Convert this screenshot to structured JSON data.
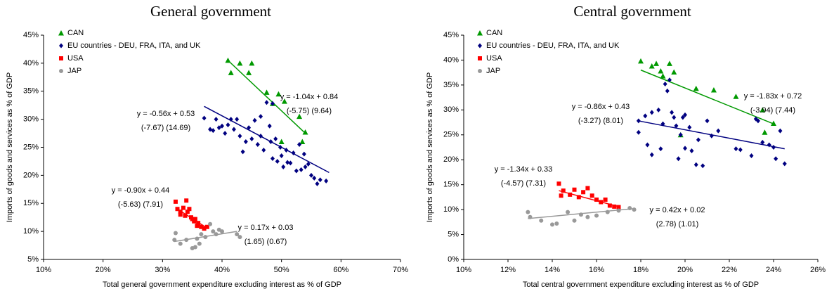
{
  "chart_data": [
    {
      "type": "scatter",
      "title": "General government",
      "x_label": "Total general government expenditure excluding interest as % of GDP",
      "y_label": "Imports of goods and services as % of GDP",
      "xlim": [
        10,
        70
      ],
      "ylim": [
        5,
        45
      ],
      "xticks": [
        {
          "value": 10,
          "label": "10%"
        },
        {
          "value": 20,
          "label": "20%"
        },
        {
          "value": 30,
          "label": "30%"
        },
        {
          "value": 40,
          "label": "40%"
        },
        {
          "value": 50,
          "label": "50%"
        },
        {
          "value": 60,
          "label": "60%"
        },
        {
          "value": 70,
          "label": "70%"
        }
      ],
      "yticks": [
        {
          "value": 5,
          "label": "5%"
        },
        {
          "value": 10,
          "label": "10%"
        },
        {
          "value": 15,
          "label": "15%"
        },
        {
          "value": 20,
          "label": "20%"
        },
        {
          "value": 25,
          "label": "25%"
        },
        {
          "value": 30,
          "label": "30%"
        },
        {
          "value": 35,
          "label": "35%"
        },
        {
          "value": 40,
          "label": "40%"
        },
        {
          "value": 45,
          "label": "45%"
        }
      ],
      "legend": "upper left",
      "series": [
        {
          "name": "CAN",
          "color": "#009900",
          "marker": "triangle",
          "x": [
            41,
            41.5,
            43,
            44.5,
            45,
            47.5,
            48.5,
            49.5,
            50,
            50.5,
            53,
            53.5,
            54
          ],
          "y": [
            40.5,
            38.3,
            40,
            38.3,
            40,
            34.8,
            32.8,
            34.5,
            26,
            33.2,
            30.5,
            26,
            27.7
          ],
          "trend": {
            "x": [
              41,
              54
            ],
            "y": [
              40.5,
              27.5
            ]
          },
          "equation": [
            "y = -1.04x + 0.84",
            "(-5.75)  (9.64)"
          ]
        },
        {
          "name": "EU countries - DEU, FRA, ITA, and UK",
          "color": "#000080",
          "marker": "diamond",
          "x": [
            37,
            38,
            38.5,
            39,
            39.5,
            40,
            40.5,
            41,
            41.5,
            42,
            42.5,
            43,
            43.5,
            44,
            44.5,
            45,
            45.5,
            46,
            46.5,
            47,
            47.5,
            48,
            48.2,
            48.5,
            49,
            49.3,
            49.8,
            50,
            50.3,
            50.8,
            51,
            51.5,
            52,
            52.5,
            53,
            53.3,
            53.8,
            54,
            54.5,
            55,
            55.5,
            56,
            56.5,
            57.5,
            48.5,
            46.5
          ],
          "y": [
            30.2,
            28.2,
            28,
            30,
            28.5,
            28.8,
            27.5,
            29,
            30,
            28.2,
            30,
            27,
            24.2,
            26,
            28.5,
            26.5,
            29.8,
            25.5,
            27,
            24.5,
            33,
            28.8,
            26,
            23,
            26.5,
            22.5,
            25,
            23.5,
            21.5,
            24.5,
            22.3,
            22.2,
            24,
            20.8,
            25.5,
            21,
            23.8,
            21.5,
            22,
            20,
            19.5,
            18.5,
            19.2,
            19,
            32.8,
            30.5
          ],
          "trend": {
            "x": [
              37,
              58
            ],
            "y": [
              32.3,
              20.5
            ]
          },
          "equation": [
            "y = -0.56x + 0.53",
            "(-7.67)  (14.69)"
          ]
        },
        {
          "name": "USA",
          "color": "#ff0000",
          "marker": "square",
          "x": [
            32.2,
            32.5,
            33,
            33,
            33.5,
            33.8,
            34,
            34.2,
            34.5,
            34.8,
            35,
            35.3,
            35.5,
            35.8,
            36,
            36.5,
            37,
            37.5
          ],
          "y": [
            15.3,
            14,
            13.5,
            13,
            14.2,
            12.8,
            15.5,
            13.5,
            14,
            12.5,
            12.2,
            11.8,
            12.2,
            11,
            11.5,
            10.8,
            10.5,
            10.8
          ],
          "trend": {
            "x": [
              32.2,
              37.5
            ],
            "y": [
              14.2,
              10.6
            ]
          },
          "equation": [
            "y = -0.90x + 0.44",
            "(-5.63)  (7.91)"
          ]
        },
        {
          "name": "JAP",
          "color": "#999999",
          "marker": "circle",
          "x": [
            32,
            32.2,
            33,
            34,
            35,
            35.5,
            35.8,
            36.2,
            36.5,
            37.2,
            38,
            38.5,
            39,
            39.5,
            40,
            42.5,
            43
          ],
          "y": [
            8.5,
            9.7,
            7.8,
            8.5,
            7,
            7.2,
            8.7,
            7.8,
            9.5,
            9,
            11.3,
            10,
            9.5,
            10.3,
            10,
            9.5,
            9
          ],
          "trend": {
            "x": [
              32,
              42.5
            ],
            "y": [
              8.2,
              10
            ]
          },
          "equation": [
            "y = 0.17x + 0.03",
            "(1.65)  (0.67)"
          ]
        }
      ]
    },
    {
      "type": "scatter",
      "title": "Central government",
      "x_label": "Total central government expenditure excluding interest as % of GDP",
      "y_label": "Imports of goods and services as % of GDP",
      "xlim": [
        10,
        26
      ],
      "ylim": [
        0,
        45
      ],
      "xticks": [
        {
          "value": 10,
          "label": "10%"
        },
        {
          "value": 12,
          "label": "12%"
        },
        {
          "value": 14,
          "label": "14%"
        },
        {
          "value": 16,
          "label": "16%"
        },
        {
          "value": 18,
          "label": "18%"
        },
        {
          "value": 20,
          "label": "20%"
        },
        {
          "value": 22,
          "label": "22%"
        },
        {
          "value": 24,
          "label": "24%"
        },
        {
          "value": 26,
          "label": "26%"
        }
      ],
      "yticks": [
        {
          "value": 0,
          "label": "0%"
        },
        {
          "value": 5,
          "label": "5%"
        },
        {
          "value": 10,
          "label": "10%"
        },
        {
          "value": 15,
          "label": "15%"
        },
        {
          "value": 20,
          "label": "20%"
        },
        {
          "value": 25,
          "label": "25%"
        },
        {
          "value": 30,
          "label": "30%"
        },
        {
          "value": 35,
          "label": "35%"
        },
        {
          "value": 40,
          "label": "40%"
        },
        {
          "value": 45,
          "label": "45%"
        }
      ],
      "legend": "upper left",
      "series": [
        {
          "name": "CAN",
          "color": "#009900",
          "marker": "triangle",
          "x": [
            18,
            18.5,
            18.7,
            18.9,
            19,
            19.3,
            19.5,
            19.8,
            20.5,
            21.3,
            22.3,
            23.5,
            23.6,
            24
          ],
          "y": [
            39.8,
            38.8,
            39.3,
            37.8,
            36.8,
            39.3,
            37.6,
            25,
            34.3,
            34,
            32.7,
            30,
            25.5,
            27.3
          ],
          "trend": {
            "x": [
              18,
              24
            ],
            "y": [
              38,
              27.2
            ]
          },
          "equation": [
            "y = -1.83x + 0.72",
            "(-3.94)  (7.44)"
          ]
        },
        {
          "name": "EU countries - DEU, FRA, ITA, and UK",
          "color": "#000080",
          "marker": "diamond",
          "x": [
            17.9,
            17.9,
            18.2,
            18.3,
            18.5,
            18.5,
            18.8,
            18.9,
            19,
            19.1,
            19.2,
            19.3,
            19.4,
            19.5,
            19.6,
            19.7,
            19.8,
            19.9,
            20,
            20,
            20.2,
            20.3,
            20.5,
            20.6,
            20.8,
            21,
            21.2,
            21.5,
            22.3,
            22.5,
            23,
            23.2,
            23.3,
            23.5,
            23.8,
            24,
            24.1,
            24.3,
            24.5
          ],
          "y": [
            25.5,
            27.8,
            28.8,
            23,
            21,
            29.5,
            30,
            22.2,
            27.2,
            35.2,
            33.8,
            36,
            29.5,
            28.5,
            26.8,
            20.2,
            25,
            28.5,
            22.3,
            29,
            26.5,
            21.8,
            19,
            24,
            18.8,
            27.8,
            24.8,
            25.8,
            22.2,
            22,
            20.8,
            28.2,
            27.8,
            23.5,
            23,
            22.5,
            20.2,
            25.8,
            19.2
          ],
          "trend": {
            "x": [
              17.9,
              24.5
            ],
            "y": [
              27.8,
              22.2
            ]
          },
          "equation": [
            "y = -0.86x + 0.43",
            "(-3.27)  (8.01)"
          ]
        },
        {
          "name": "USA",
          "color": "#ff0000",
          "marker": "square",
          "x": [
            14.3,
            14.4,
            14.5,
            14.8,
            15,
            15.2,
            15.4,
            15.6,
            15.8,
            16,
            16.2,
            16.4,
            16.6,
            16.8,
            17
          ],
          "y": [
            15.2,
            12.8,
            13.8,
            13,
            14,
            12.5,
            13.5,
            14.3,
            12.8,
            12,
            11.5,
            12,
            10.8,
            10.6,
            10.5
          ],
          "trend": {
            "x": [
              14.3,
              17
            ],
            "y": [
              13.8,
              10.6
            ]
          },
          "equation": [
            "y = -1.34x + 0.33",
            "(-4.57)  (7.31)"
          ]
        },
        {
          "name": "JAP",
          "color": "#999999",
          "marker": "circle",
          "x": [
            12.9,
            13,
            13.5,
            14,
            14.2,
            14.7,
            15,
            15.3,
            15.6,
            16,
            16.5,
            17,
            17.5,
            17.7
          ],
          "y": [
            9.5,
            8.5,
            7.8,
            7,
            7.2,
            9.5,
            7.8,
            9,
            8.5,
            8.8,
            9.5,
            9.8,
            10.3,
            10
          ],
          "trend": {
            "x": [
              12.9,
              17.7
            ],
            "y": [
              8.2,
              10.2
            ]
          },
          "equation": [
            "y = 0.42x + 0.02",
            "(2.78)  (1.01)"
          ]
        }
      ]
    }
  ]
}
